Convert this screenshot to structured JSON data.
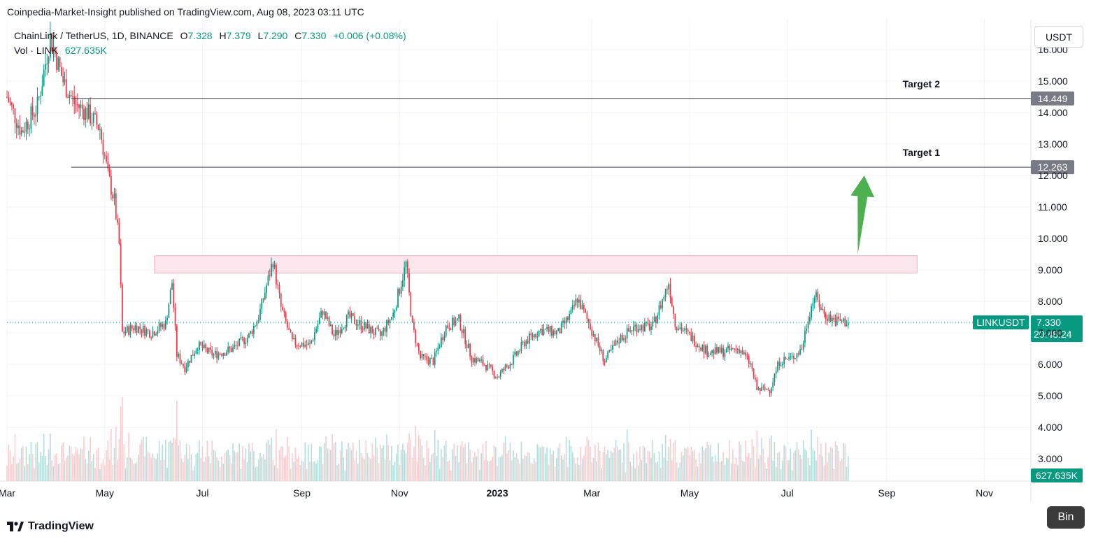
{
  "header": {
    "published_line": "Coinpedia-Market-Insight published on TradingView.com, Aug 08, 2023 03:11 UTC"
  },
  "legend": {
    "symbol": "ChainLink / TetherUS, 1D, BINANCE",
    "open_label": "O",
    "open": "7.328",
    "high_label": "H",
    "high": "7.379",
    "low_label": "L",
    "low": "7.290",
    "close_label": "C",
    "close": "7.330",
    "change": "+0.006 (+0.08%)",
    "vol_label": "Vol · LINK",
    "vol": "627.635K"
  },
  "currency_button": "USDT",
  "footer": {
    "brand": "TradingView"
  },
  "bin_button": "Bin",
  "colors": {
    "up": "#089981",
    "down": "#f23645",
    "zone_fill": "#fce4ec",
    "zone_stroke": "#f4a6b5",
    "arrow": "#4caf50",
    "level_label_bg": "#787b86"
  },
  "chart_data": {
    "type": "candlestick",
    "symbol": "LINKUSDT",
    "ylim": [
      2.3,
      16.3
    ],
    "y_ticks": [
      "16.000",
      "15.000",
      "14.000",
      "13.000",
      "12.000",
      "11.000",
      "10.000",
      "9.000",
      "8.000",
      "7.000",
      "6.000",
      "5.000",
      "4.000",
      "3.000"
    ],
    "x_ticks": [
      "Mar",
      "May",
      "Jul",
      "Sep",
      "Nov",
      "2023",
      "Mar",
      "May",
      "Jul",
      "Sep",
      "Nov"
    ],
    "x_tick_positions_date": [
      "2022-03-01",
      "2022-05-01",
      "2022-07-01",
      "2022-09-01",
      "2022-11-01",
      "2023-01-01",
      "2023-03-01",
      "2023-05-01",
      "2023-07-01",
      "2023-09-01",
      "2023-11-01"
    ],
    "date_range": [
      "2022-03-01",
      "2023-11-30"
    ],
    "last_date": "2023-08-08",
    "levels": [
      {
        "name": "Target 2",
        "value": 14.449,
        "label": "14.449",
        "start_date": "2022-04-10"
      },
      {
        "name": "Target 1",
        "value": 12.263,
        "label": "12.263",
        "start_date": "2022-04-10"
      }
    ],
    "resistance_zone": {
      "low": 8.9,
      "high": 9.45,
      "start_date": "2022-06-01",
      "end_date": "2023-09-20"
    },
    "arrow": {
      "from_date": "2023-08-14",
      "from_value": 9.5,
      "to_date": "2023-08-18",
      "to_value": 12.0
    },
    "current_price": {
      "label": "LINKUSDT",
      "value": 7.33,
      "price_text": "7.330",
      "countdown": "20:48:24"
    },
    "volume_label": "627.635K",
    "price_path": [
      [
        "2022-03-01",
        14.5
      ],
      [
        "2022-03-10",
        13.4
      ],
      [
        "2022-03-20",
        14.2
      ],
      [
        "2022-03-28",
        16.4
      ],
      [
        "2022-04-05",
        15.0
      ],
      [
        "2022-04-12",
        14.3
      ],
      [
        "2022-04-20",
        14.0
      ],
      [
        "2022-04-28",
        13.5
      ],
      [
        "2022-05-03",
        12.0
      ],
      [
        "2022-05-07",
        11.2
      ],
      [
        "2022-05-10",
        9.8
      ],
      [
        "2022-05-12",
        7.0
      ],
      [
        "2022-05-20",
        7.2
      ],
      [
        "2022-05-30",
        7.0
      ],
      [
        "2022-06-08",
        7.3
      ],
      [
        "2022-06-12",
        8.6
      ],
      [
        "2022-06-15",
        6.3
      ],
      [
        "2022-06-20",
        5.9
      ],
      [
        "2022-06-28",
        6.6
      ],
      [
        "2022-07-08",
        6.3
      ],
      [
        "2022-07-20",
        6.5
      ],
      [
        "2022-07-30",
        6.9
      ],
      [
        "2022-08-05",
        7.5
      ],
      [
        "2022-08-14",
        9.3
      ],
      [
        "2022-08-19",
        7.8
      ],
      [
        "2022-08-26",
        6.7
      ],
      [
        "2022-09-06",
        6.6
      ],
      [
        "2022-09-14",
        7.7
      ],
      [
        "2022-09-21",
        6.9
      ],
      [
        "2022-09-30",
        7.5
      ],
      [
        "2022-10-10",
        7.2
      ],
      [
        "2022-10-20",
        6.9
      ],
      [
        "2022-10-28",
        7.6
      ],
      [
        "2022-11-05",
        9.2
      ],
      [
        "2022-11-09",
        7.2
      ],
      [
        "2022-11-14",
        6.2
      ],
      [
        "2022-11-22",
        6.1
      ],
      [
        "2022-11-30",
        7.2
      ],
      [
        "2022-12-08",
        7.4
      ],
      [
        "2022-12-16",
        6.2
      ],
      [
        "2022-12-24",
        6.0
      ],
      [
        "2023-01-01",
        5.6
      ],
      [
        "2023-01-10",
        6.1
      ],
      [
        "2023-01-18",
        6.7
      ],
      [
        "2023-01-28",
        7.1
      ],
      [
        "2023-02-08",
        7.0
      ],
      [
        "2023-02-16",
        7.6
      ],
      [
        "2023-02-20",
        8.1
      ],
      [
        "2023-02-28",
        7.2
      ],
      [
        "2023-03-09",
        6.1
      ],
      [
        "2023-03-18",
        6.8
      ],
      [
        "2023-03-28",
        7.2
      ],
      [
        "2023-04-08",
        7.2
      ],
      [
        "2023-04-18",
        8.6
      ],
      [
        "2023-04-22",
        7.3
      ],
      [
        "2023-05-01",
        6.9
      ],
      [
        "2023-05-12",
        6.4
      ],
      [
        "2023-05-22",
        6.4
      ],
      [
        "2023-06-01",
        6.5
      ],
      [
        "2023-06-08",
        6.0
      ],
      [
        "2023-06-12",
        5.2
      ],
      [
        "2023-06-20",
        5.2
      ],
      [
        "2023-06-26",
        6.1
      ],
      [
        "2023-07-04",
        6.2
      ],
      [
        "2023-07-10",
        6.5
      ],
      [
        "2023-07-14",
        7.5
      ],
      [
        "2023-07-18",
        8.2
      ],
      [
        "2023-07-24",
        7.6
      ],
      [
        "2023-07-30",
        7.4
      ],
      [
        "2023-08-08",
        7.33
      ]
    ]
  }
}
